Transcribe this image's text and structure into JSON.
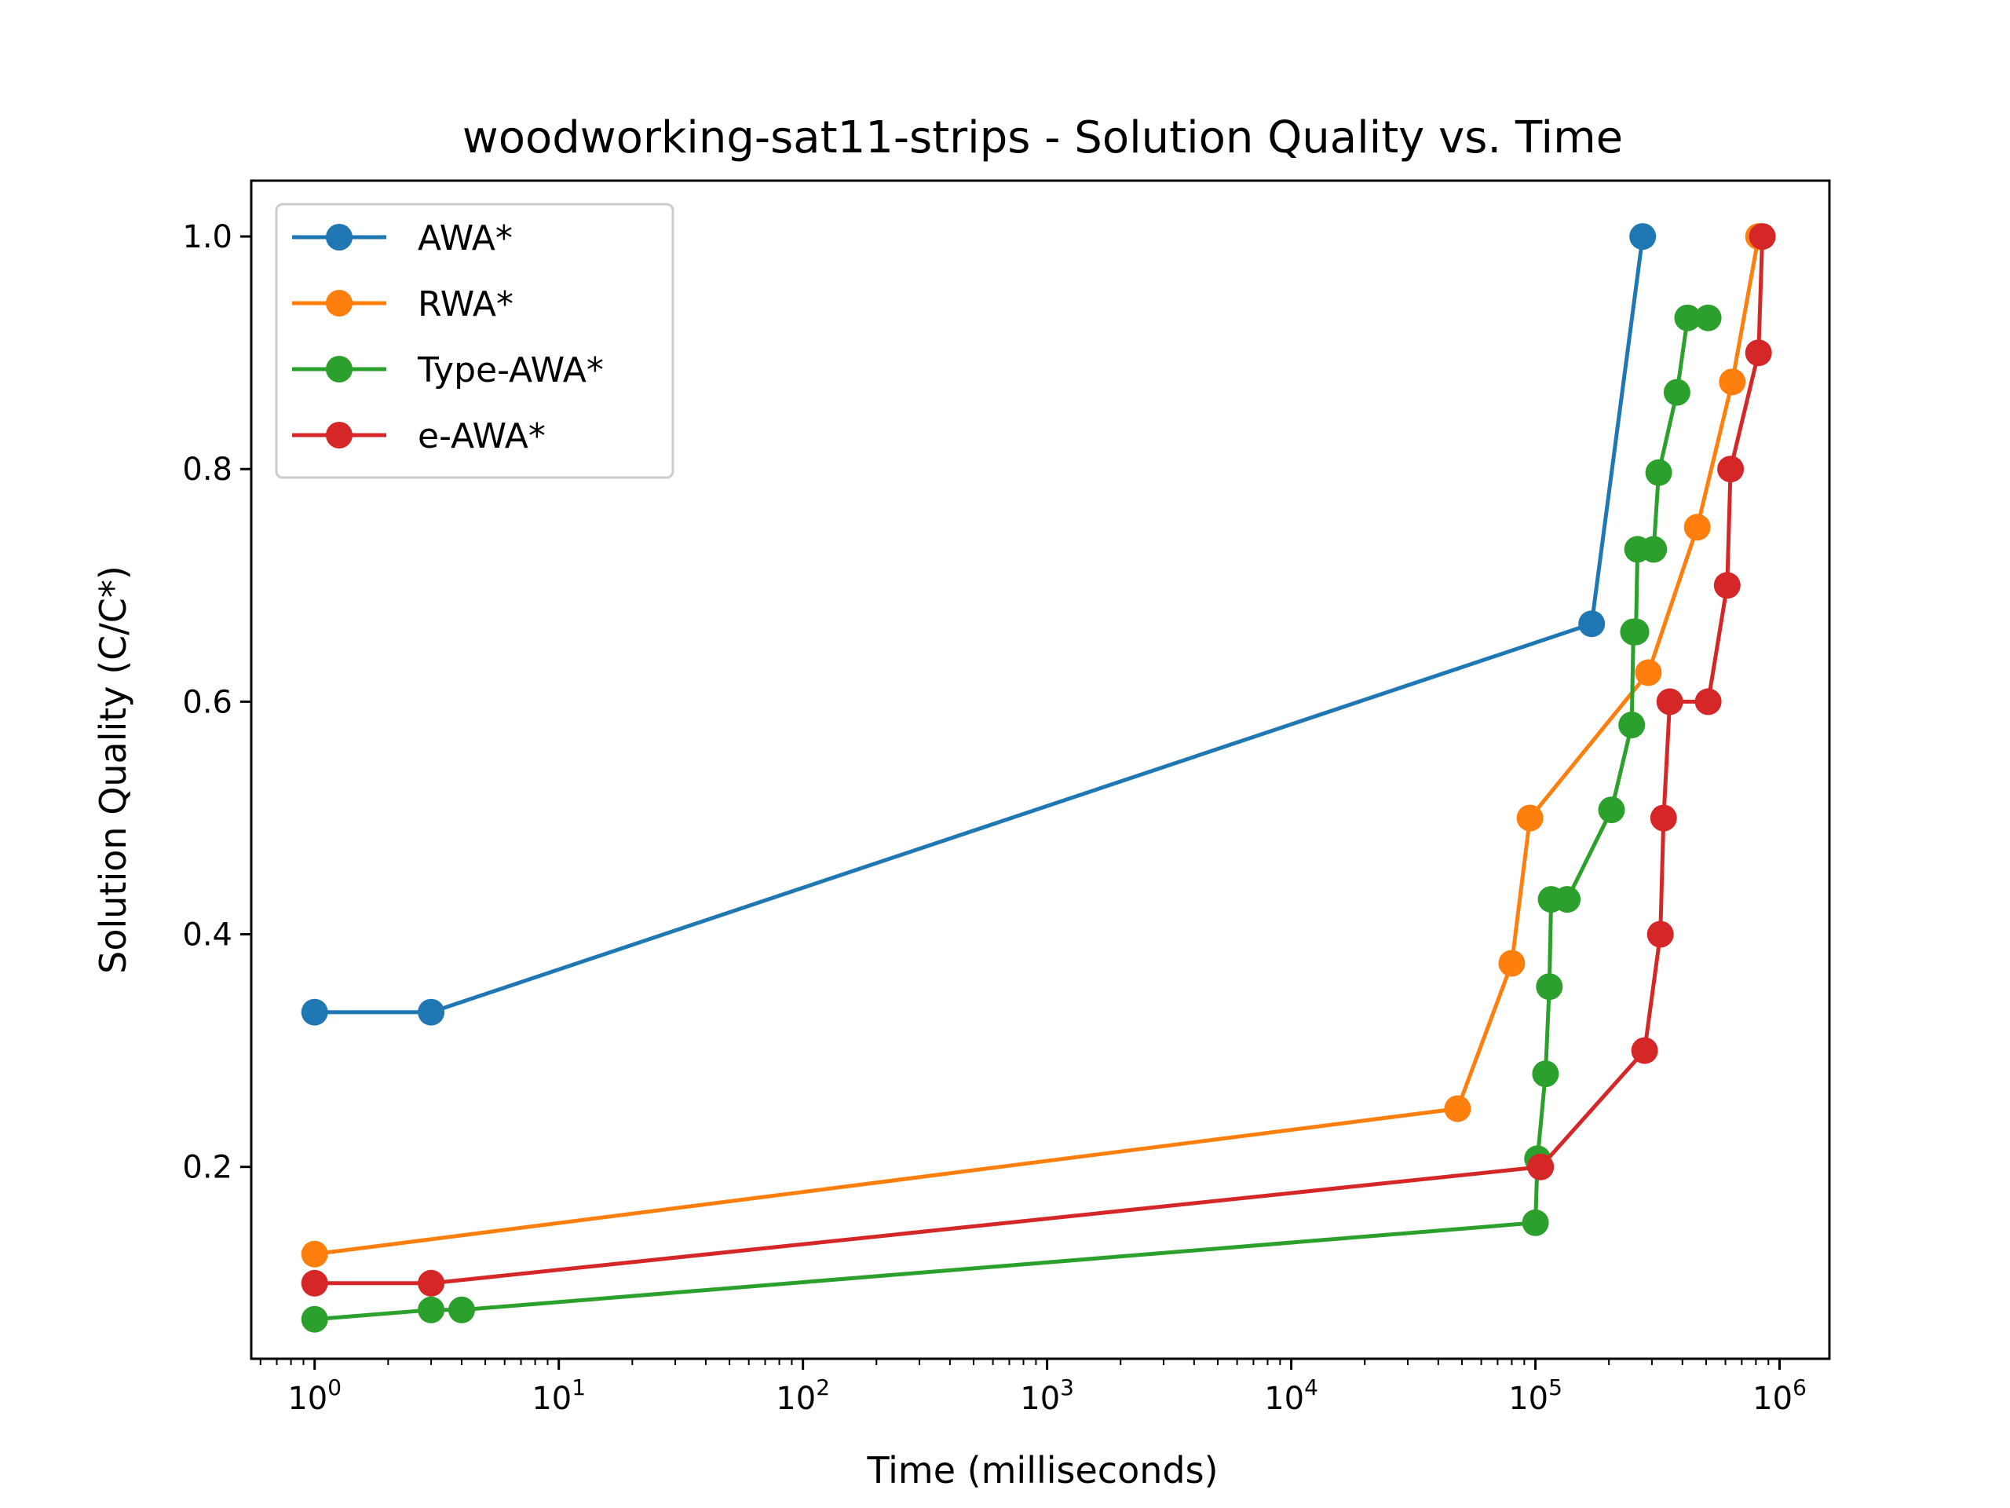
{
  "chart_data": {
    "type": "line",
    "title": "woodworking-sat11-strips - Solution Quality vs. Time",
    "xlabel": "Time (milliseconds)",
    "ylabel": "Solution Quality (C/C*)",
    "xscale": "log",
    "xlim": [
      0.55,
      1600000
    ],
    "ylim": [
      0.035,
      1.048
    ],
    "x_tick_labels": [
      {
        "base": "10",
        "exp": "0",
        "value": 1
      },
      {
        "base": "10",
        "exp": "1",
        "value": 10
      },
      {
        "base": "10",
        "exp": "2",
        "value": 100
      },
      {
        "base": "10",
        "exp": "3",
        "value": 1000
      },
      {
        "base": "10",
        "exp": "4",
        "value": 10000
      },
      {
        "base": "10",
        "exp": "5",
        "value": 100000
      },
      {
        "base": "10",
        "exp": "6",
        "value": 1000000
      }
    ],
    "y_tick_labels": [
      {
        "label": "0.2",
        "value": 0.2
      },
      {
        "label": "0.4",
        "value": 0.4
      },
      {
        "label": "0.6",
        "value": 0.6
      },
      {
        "label": "0.8",
        "value": 0.8
      },
      {
        "label": "1.0",
        "value": 1.0
      }
    ],
    "grid": false,
    "legend": "upper left",
    "series": [
      {
        "name": "AWA*",
        "color": "#1f77b4",
        "x": [
          1,
          3,
          170000,
          275000
        ],
        "y": [
          0.333,
          0.333,
          0.667,
          1.0
        ]
      },
      {
        "name": "RWA*",
        "color": "#ff7f0e",
        "x": [
          1,
          48000,
          80000,
          95000,
          290000,
          460000,
          640000,
          820000
        ],
        "y": [
          0.125,
          0.25,
          0.375,
          0.5,
          0.625,
          0.75,
          0.875,
          1.0
        ]
      },
      {
        "name": "Type-AWA*",
        "color": "#2ca02c",
        "x": [
          1,
          3,
          4,
          100000,
          102000,
          110000,
          114000,
          116000,
          135000,
          205000,
          248000,
          252000,
          258000,
          262000,
          305000,
          320000,
          380000,
          420000,
          510000
        ],
        "y": [
          0.069,
          0.077,
          0.077,
          0.152,
          0.207,
          0.28,
          0.355,
          0.43,
          0.43,
          0.507,
          0.58,
          0.66,
          0.66,
          0.731,
          0.731,
          0.797,
          0.866,
          0.93,
          0.93
        ]
      },
      {
        "name": "e-AWA*",
        "color": "#d62728",
        "x": [
          1,
          3,
          105000,
          280000,
          325000,
          335000,
          355000,
          510000,
          610000,
          630000,
          820000,
          850000
        ],
        "y": [
          0.1,
          0.1,
          0.2,
          0.3,
          0.4,
          0.5,
          0.6,
          0.6,
          0.7,
          0.8,
          0.9,
          1.0
        ]
      }
    ]
  }
}
